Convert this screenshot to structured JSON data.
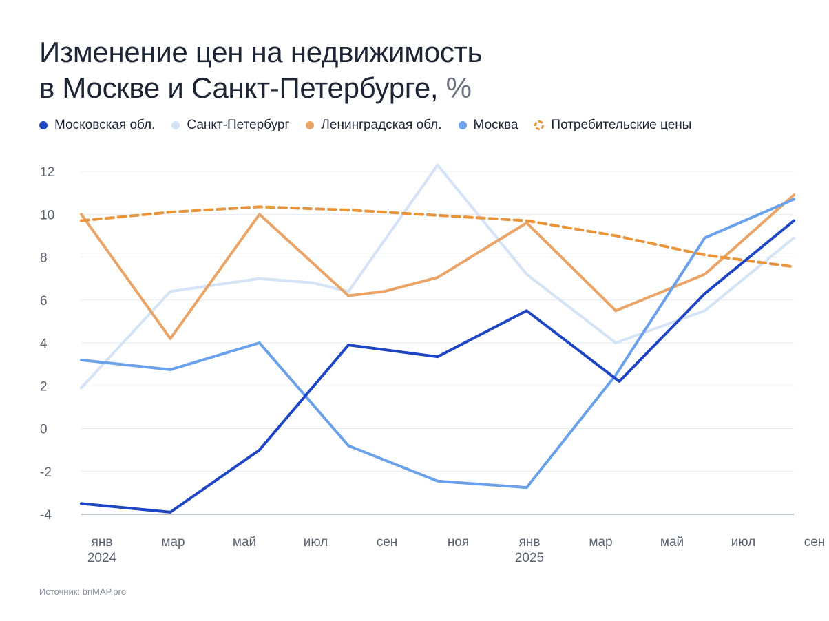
{
  "title_line1": "Изменение цен на недвижимость",
  "title_line2": "в Москве и Санкт-Петербурге,",
  "title_unit": "%",
  "source": "Источник: bnMAP.pro",
  "colors": {
    "mo": "#1e45c4",
    "spb": "#d4e3f5",
    "lo": "#eba468",
    "msk": "#6aa1ea",
    "cpi": "#e8943a",
    "grid": "#e6e9ef",
    "axis": "#aab2bf",
    "tick": "#5b6270"
  },
  "chart_data": {
    "type": "line",
    "title": "Изменение цен на недвижимость в Москве и Санкт-Петербурге, %",
    "x_labels": [
      {
        "index": 0,
        "label": "янв",
        "year": "2024"
      },
      {
        "index": 2,
        "label": "мар"
      },
      {
        "index": 4,
        "label": "май"
      },
      {
        "index": 6,
        "label": "июл"
      },
      {
        "index": 8,
        "label": "сен"
      },
      {
        "index": 10,
        "label": "ноя"
      },
      {
        "index": 12,
        "label": "янв",
        "year": "2025"
      },
      {
        "index": 14,
        "label": "мар"
      },
      {
        "index": 16,
        "label": "май"
      },
      {
        "index": 18,
        "label": "июл"
      },
      {
        "index": 20,
        "label": "сен"
      }
    ],
    "ylim": [
      -4,
      12
    ],
    "yticks": [
      -4,
      -2,
      0,
      2,
      4,
      6,
      8,
      10,
      12
    ],
    "legend_position": "top",
    "series": [
      {
        "key": "mo",
        "name": "Московская обл.",
        "style": "solid",
        "points": [
          [
            0,
            -3.5
          ],
          [
            2.5,
            -3.9
          ],
          [
            5,
            -1
          ],
          [
            7.5,
            3.9
          ],
          [
            10,
            3.35
          ],
          [
            12.5,
            5.5
          ],
          [
            15.1,
            2.2
          ],
          [
            17.5,
            6.3
          ],
          [
            20,
            9.7
          ]
        ]
      },
      {
        "key": "spb",
        "name": "Санкт-Петербург",
        "style": "solid",
        "points": [
          [
            0,
            1.9
          ],
          [
            2.5,
            6.4
          ],
          [
            5,
            7
          ],
          [
            6.5,
            6.8
          ],
          [
            7.5,
            6.4
          ],
          [
            10,
            12.3
          ],
          [
            12.5,
            7.2
          ],
          [
            15,
            4
          ],
          [
            17.5,
            5.5
          ],
          [
            20,
            8.9
          ]
        ]
      },
      {
        "key": "lo",
        "name": "Ленинградская обл.",
        "style": "solid",
        "points": [
          [
            0,
            10
          ],
          [
            2.5,
            4.2
          ],
          [
            5,
            10
          ],
          [
            7.5,
            6.2
          ],
          [
            8.5,
            6.4
          ],
          [
            10,
            7.05
          ],
          [
            12.5,
            9.6
          ],
          [
            15,
            5.5
          ],
          [
            17.5,
            7.2
          ],
          [
            20,
            10.9
          ]
        ]
      },
      {
        "key": "msk",
        "name": "Москва",
        "style": "solid",
        "points": [
          [
            0,
            3.2
          ],
          [
            2.5,
            2.75
          ],
          [
            5,
            4
          ],
          [
            7.5,
            -0.8
          ],
          [
            10,
            -2.45
          ],
          [
            12.5,
            -2.75
          ],
          [
            15,
            2.5
          ],
          [
            17.5,
            8.9
          ],
          [
            20,
            10.7
          ]
        ]
      },
      {
        "key": "cpi",
        "name": "Потребительские цены",
        "style": "dashed",
        "points": [
          [
            0,
            9.7
          ],
          [
            2.5,
            10.1
          ],
          [
            5,
            10.35
          ],
          [
            7.5,
            10.2
          ],
          [
            10,
            9.95
          ],
          [
            12.5,
            9.7
          ],
          [
            15,
            9
          ],
          [
            17.5,
            8.1
          ],
          [
            20,
            7.55
          ]
        ]
      }
    ]
  }
}
